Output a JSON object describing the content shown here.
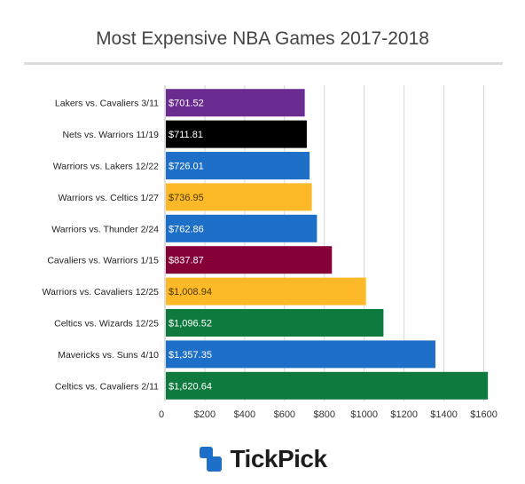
{
  "brand": {
    "name": "TickPick",
    "icon": "tickpick-logo-icon",
    "icon_color": "#1e6fc7"
  },
  "chart_data": {
    "type": "bar",
    "orientation": "horizontal",
    "title": "Most Expensive NBA Games 2017-2018",
    "categories": [
      "Lakers vs. Cavaliers 3/11",
      "Nets vs. Warriors 11/19",
      "Warriors vs. Lakers 12/22",
      "Warriors vs. Celtics 1/27",
      "Warriors vs. Thunder 2/24",
      "Cavaliers vs. Warriors 1/15",
      "Warriors vs. Cavaliers 12/25",
      "Celtics vs. Wizards 12/25",
      "Mavericks vs. Suns 4/10",
      "Celtics vs. Cavaliers 2/11"
    ],
    "values": [
      701.52,
      711.81,
      726.01,
      736.95,
      762.86,
      837.87,
      1008.94,
      1096.52,
      1357.35,
      1620.64
    ],
    "value_labels": [
      "$701.52",
      "$711.81",
      "$726.01",
      "$736.95",
      "$762.86",
      "$837.87",
      "$1,008.94",
      "$1,096.52",
      "$1,357.35",
      "$1,620.64"
    ],
    "colors": [
      "#6a2c91",
      "#000000",
      "#1e6fc7",
      "#fdb927",
      "#1e6fc7",
      "#860038",
      "#fdb927",
      "#0e7a3e",
      "#1e6fc7",
      "#0e7a3e"
    ],
    "label_colors": [
      "#ffffff",
      "#ffffff",
      "#ffffff",
      "#4a3a00",
      "#ffffff",
      "#ffffff",
      "#4a3a00",
      "#ffffff",
      "#ffffff",
      "#ffffff"
    ],
    "x_ticks": [
      0,
      200,
      400,
      600,
      800,
      1000,
      1200,
      1400,
      1600
    ],
    "x_tick_labels": [
      "0",
      "$200",
      "$400",
      "$600",
      "$800",
      "$1000",
      "$1200",
      "$1400",
      "$1600"
    ],
    "xlim": [
      0,
      1700
    ],
    "grid": true,
    "legend": "none"
  }
}
